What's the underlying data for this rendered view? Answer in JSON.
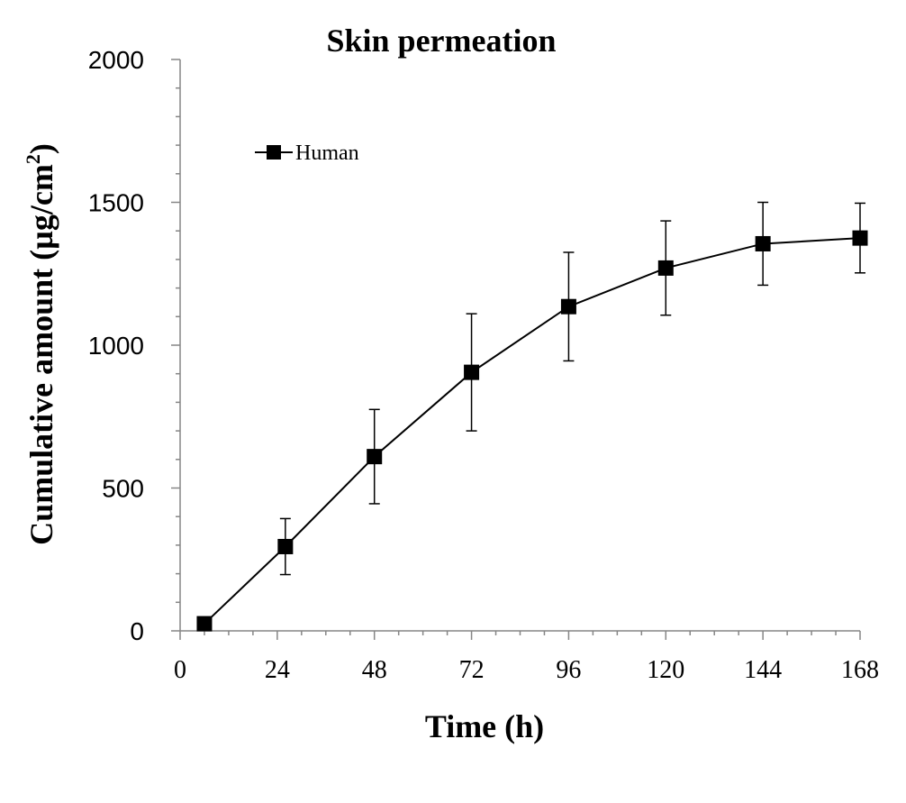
{
  "chart_data": {
    "type": "line",
    "title": "Skin permeation",
    "xlabel": "Time (h)",
    "ylabel_main": "Cumulative amount (µg/cm",
    "ylabel_sup": "2",
    "ylabel_close": ")",
    "xlim": [
      0,
      168
    ],
    "ylim": [
      0,
      2000
    ],
    "xticks": [
      0,
      24,
      48,
      72,
      96,
      120,
      144,
      168
    ],
    "yticks": [
      0,
      500,
      1000,
      1500,
      2000
    ],
    "legend_position": "top-left",
    "series": [
      {
        "name": "Human",
        "color": "#000000",
        "marker": "square",
        "x": [
          6,
          26,
          48,
          72,
          96,
          120,
          144,
          168
        ],
        "y": [
          25,
          295,
          610,
          905,
          1135,
          1270,
          1355,
          1375
        ],
        "error": [
          0,
          98,
          165,
          205,
          190,
          165,
          145,
          122
        ]
      }
    ]
  }
}
